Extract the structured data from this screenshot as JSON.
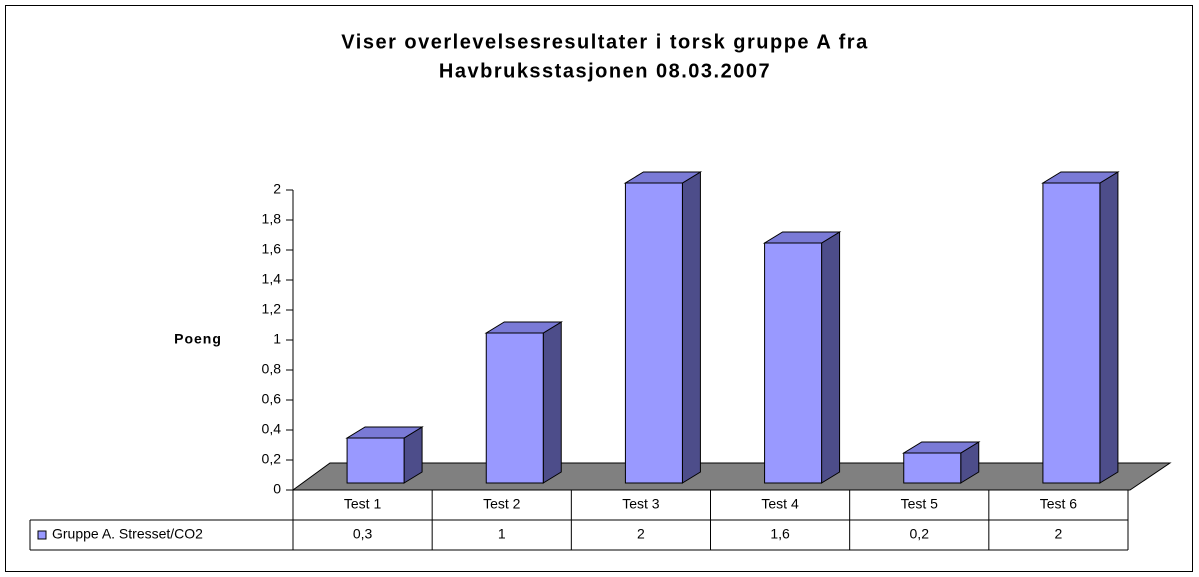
{
  "chart_data": {
    "type": "bar3d",
    "title": [
      "Viser overlevelsesresultater i torsk gruppe A fra",
      "Havbruksstasjonen 08.03.2007"
    ],
    "ylabel": "Poeng",
    "categories": [
      "Test 1",
      "Test 2",
      "Test 3",
      "Test 4",
      "Test 5",
      "Test 6"
    ],
    "series": [
      {
        "name": "Gruppe A. Stresset/CO2",
        "color": "#9999ff",
        "values": [
          0.3,
          1,
          2,
          1.6,
          0.2,
          2
        ],
        "value_labels": [
          "0,3",
          "1",
          "2",
          "1,6",
          "0,2",
          "2"
        ]
      }
    ],
    "ylim": [
      0,
      2
    ],
    "yticks": [
      0,
      {
        "value": 0.2,
        "label": "0,2"
      },
      {
        "value": 0.4,
        "label": "0,4"
      },
      {
        "value": 0.6,
        "label": "0,6"
      },
      {
        "value": 0.8,
        "label": "0,8"
      },
      1,
      {
        "value": 1.2,
        "label": "1,2"
      },
      {
        "value": 1.4,
        "label": "1,4"
      },
      {
        "value": 1.6,
        "label": "1,6"
      },
      {
        "value": 1.8,
        "label": "1,8"
      },
      2
    ],
    "data_table": true
  }
}
